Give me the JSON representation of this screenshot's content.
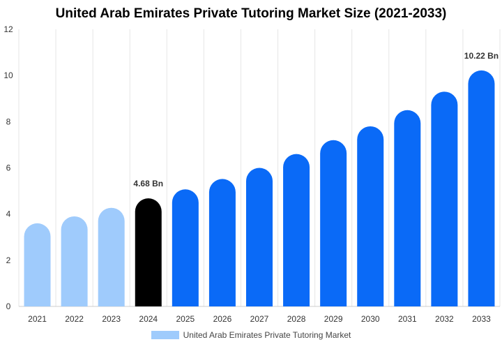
{
  "chart_data": {
    "type": "bar",
    "title": "United Arab Emirates Private Tutoring Market Size (2021-2033)",
    "xlabel": "",
    "ylabel": "",
    "categories": [
      "2021",
      "2022",
      "2023",
      "2024",
      "2025",
      "2026",
      "2027",
      "2028",
      "2029",
      "2030",
      "2031",
      "2032",
      "2033"
    ],
    "series": [
      {
        "name": "United Arab Emirates Private Tutoring Market",
        "values": [
          3.6,
          3.9,
          4.27,
          4.68,
          5.07,
          5.52,
          6.0,
          6.6,
          7.2,
          7.8,
          8.5,
          9.3,
          10.22
        ]
      }
    ],
    "ylim": [
      0,
      12
    ],
    "yticks": [
      0,
      2,
      4,
      6,
      8,
      10,
      12
    ],
    "grid": "vertical",
    "legend_position": "bottom",
    "data_labels": [
      {
        "category": "2024",
        "text": "4.68 Bn"
      },
      {
        "category": "2033",
        "text": "10.22 Bn"
      }
    ],
    "colors": {
      "historical": "#9fcbfc",
      "base_year": "#000000",
      "forecast": "#0a6af7",
      "legend": "#9fcbfc",
      "grid": "#e6e6e6",
      "axis": "#cccccc"
    },
    "bar_color_groups": [
      "historical",
      "historical",
      "historical",
      "base_year",
      "forecast",
      "forecast",
      "forecast",
      "forecast",
      "forecast",
      "forecast",
      "forecast",
      "forecast",
      "forecast"
    ]
  }
}
